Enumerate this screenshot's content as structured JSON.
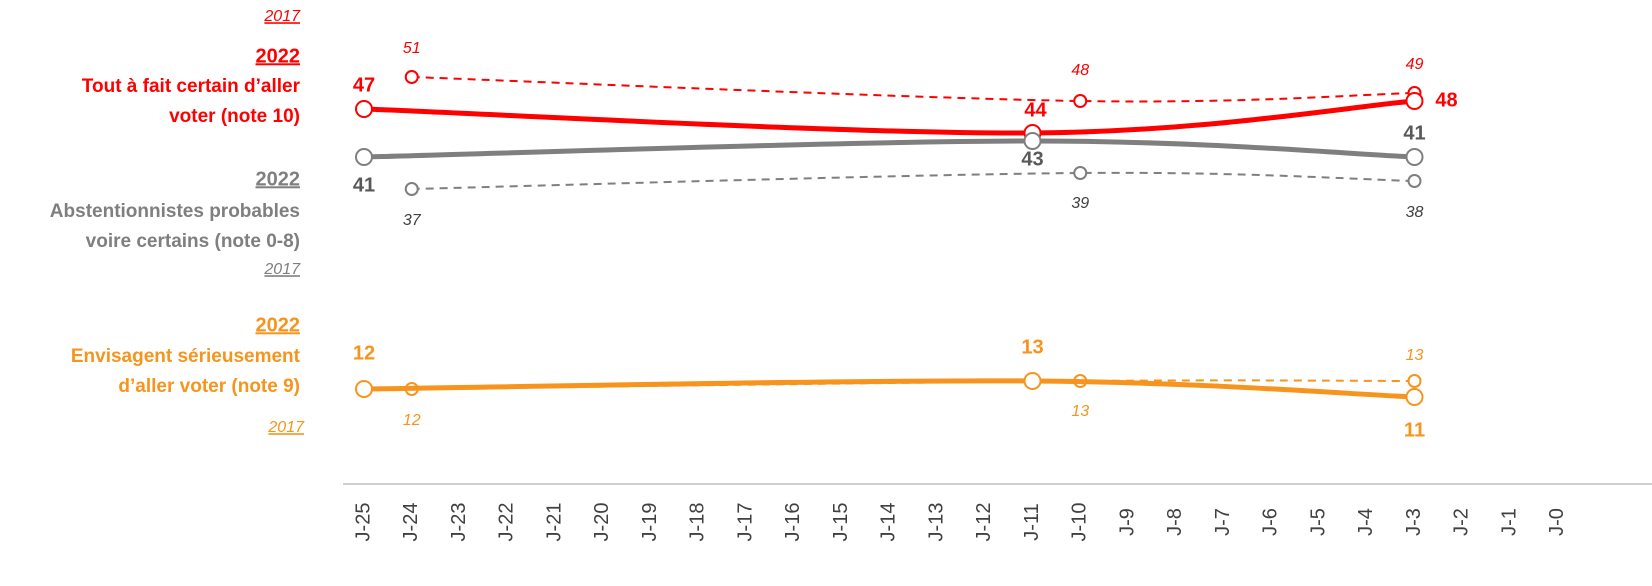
{
  "chart_data": {
    "type": "line",
    "categories": [
      "J-25",
      "J-24",
      "J-23",
      "J-22",
      "J-21",
      "J-20",
      "J-19",
      "J-18",
      "J-17",
      "J-16",
      "J-15",
      "J-14",
      "J-13",
      "J-12",
      "J-11",
      "J-10",
      "J-9",
      "J-8",
      "J-7",
      "J-6",
      "J-5",
      "J-4",
      "J-3",
      "J-2",
      "J-1",
      "J-0"
    ],
    "groups": [
      {
        "label_lines": [
          "Tout à fait certain d’aller",
          "voter (note 10)"
        ],
        "color": "#ff0000",
        "series": [
          {
            "name": "2022",
            "style": "solid",
            "x": [
              "J-25",
              "J-11",
              "J-3"
            ],
            "values": [
              47,
              44,
              48
            ]
          },
          {
            "name": "2017",
            "style": "dashed",
            "x": [
              "J-24",
              "J-10",
              "J-3"
            ],
            "values": [
              51,
              48,
              49
            ]
          }
        ]
      },
      {
        "label_lines": [
          "Abstentionnistes probables",
          "voire certains (note 0-8)"
        ],
        "color": "#7f7f7f",
        "series": [
          {
            "name": "2022",
            "style": "solid",
            "x": [
              "J-25",
              "J-11",
              "J-3"
            ],
            "values": [
              41,
              43,
              41
            ]
          },
          {
            "name": "2017",
            "style": "dashed",
            "x": [
              "J-24",
              "J-10",
              "J-3"
            ],
            "values": [
              37,
              39,
              38
            ]
          }
        ]
      },
      {
        "label_lines": [
          "Envisagent sérieusement",
          "d’aller voter (note 9)"
        ],
        "color": "#f7941d",
        "series": [
          {
            "name": "2022",
            "style": "solid",
            "x": [
              "J-25",
              "J-11",
              "J-3"
            ],
            "values": [
              12,
              13,
              11
            ]
          },
          {
            "name": "2017",
            "style": "dashed",
            "x": [
              "J-24",
              "J-10",
              "J-3"
            ],
            "values": [
              12,
              13,
              13
            ]
          }
        ]
      }
    ]
  }
}
